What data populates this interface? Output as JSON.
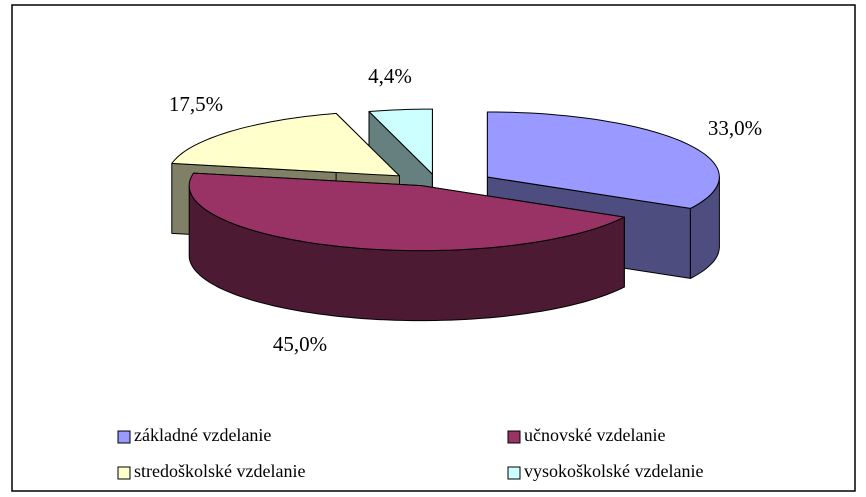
{
  "chart_data": {
    "type": "pie3d",
    "categories": [
      "základné vzdelanie",
      "učnovské vzdelanie",
      "stredoškolské vzdelanie",
      "vysokoškolské vzdelanie"
    ],
    "values": [
      33.0,
      45.0,
      17.5,
      4.4
    ],
    "value_labels": [
      "33,0%",
      "45,0%",
      "17,5%",
      "4,4%"
    ],
    "colors": [
      "#9999ff",
      "#993366",
      "#ffffcc",
      "#ccffff"
    ],
    "legend": "bottom"
  }
}
